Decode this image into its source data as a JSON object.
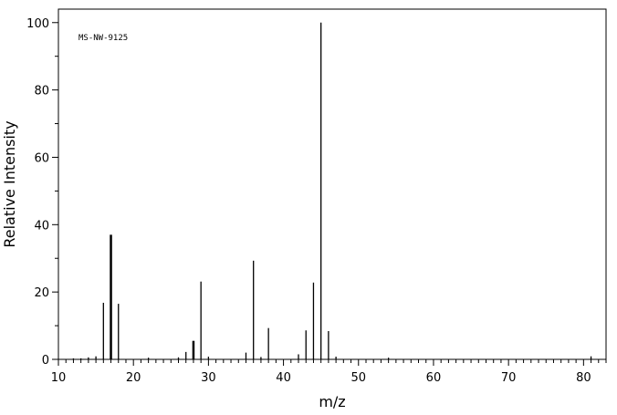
{
  "chart_data": {
    "type": "bar",
    "title": "",
    "annotation": "MS-NW-9125",
    "xlabel": "m/z",
    "ylabel": "Relative Intensity",
    "xlim": [
      10,
      83
    ],
    "ylim": [
      0,
      104
    ],
    "xticks": [
      10,
      20,
      30,
      40,
      50,
      60,
      70,
      80
    ],
    "yticks": [
      0,
      20,
      40,
      60,
      80,
      100
    ],
    "x_minor_step": 1,
    "y_minor_step": 10,
    "grid": false,
    "peaks": [
      {
        "mz": 12,
        "intensity": 0.3
      },
      {
        "mz": 13,
        "intensity": 0.3
      },
      {
        "mz": 14,
        "intensity": 0.6
      },
      {
        "mz": 15,
        "intensity": 0.9
      },
      {
        "mz": 16,
        "intensity": 16.8
      },
      {
        "mz": 17,
        "intensity": 37.0
      },
      {
        "mz": 18,
        "intensity": 16.5
      },
      {
        "mz": 22,
        "intensity": 0.5
      },
      {
        "mz": 26,
        "intensity": 0.6
      },
      {
        "mz": 27,
        "intensity": 2.2
      },
      {
        "mz": 28,
        "intensity": 5.5
      },
      {
        "mz": 29,
        "intensity": 23.1
      },
      {
        "mz": 30,
        "intensity": 0.8
      },
      {
        "mz": 35,
        "intensity": 2.0
      },
      {
        "mz": 36,
        "intensity": 29.3
      },
      {
        "mz": 37,
        "intensity": 0.7
      },
      {
        "mz": 38,
        "intensity": 9.3
      },
      {
        "mz": 42,
        "intensity": 1.5
      },
      {
        "mz": 43,
        "intensity": 8.6
      },
      {
        "mz": 44,
        "intensity": 22.8
      },
      {
        "mz": 45,
        "intensity": 100
      },
      {
        "mz": 46,
        "intensity": 8.4
      },
      {
        "mz": 47,
        "intensity": 0.8
      },
      {
        "mz": 54,
        "intensity": 0.5
      },
      {
        "mz": 81,
        "intensity": 0.9
      }
    ]
  }
}
